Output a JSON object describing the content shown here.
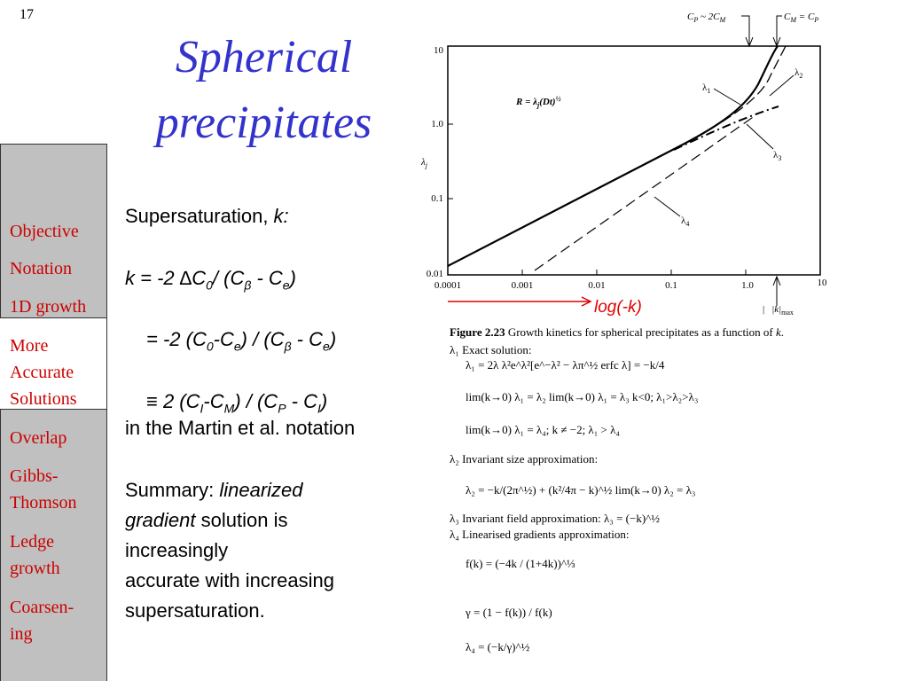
{
  "slide_number": "17",
  "title": [
    "Spherical",
    "precipitates"
  ],
  "sidebar": {
    "items": [
      [
        "Objective"
      ],
      [
        "Notation"
      ],
      [
        "1D growth"
      ],
      [
        "More",
        "Accurate",
        "Solutions"
      ],
      [
        "Overlap"
      ],
      [
        "Gibbs-",
        "Thomson"
      ],
      [
        "Ledge",
        "growth"
      ],
      [
        "Coarsen-",
        "ing"
      ]
    ]
  },
  "body": {
    "lines": [
      [
        "Supersaturation, ",
        "k:"
      ],
      [
        "k = -2 ∆C",
        "0",
        "/ (C",
        "β",
        " - C",
        "e",
        ")"
      ],
      [
        "= -2 (C",
        "0",
        "-C",
        "e",
        ") / (C",
        "β",
        " - C",
        "e",
        ")"
      ],
      [
        "≡ 2 (C",
        "I",
        "-C",
        "M",
        ") / (C",
        "P",
        " - C",
        "I",
        ")"
      ],
      [
        "in the Martin et al. notation"
      ]
    ],
    "summary": [
      "Summary: ",
      "linearized",
      "gradient",
      " solution is",
      "increasingly",
      "accurate with increasing",
      "supersaturation."
    ]
  },
  "figure": {
    "top_labels": [
      [
        "C",
        "P",
        " ~ 2C",
        "M"
      ],
      [
        "C",
        "M",
        " = C",
        "P"
      ]
    ],
    "y_label": [
      "λ",
      "j"
    ],
    "equation": [
      "R",
      " = λ",
      "j",
      "(Dt)",
      "½"
    ],
    "yticks": [
      "10",
      "1.0",
      "0.1",
      "0.01"
    ],
    "xticks": [
      "0.0001",
      "0.001",
      "0.01",
      "0.1",
      "1.0",
      "10"
    ],
    "curve_labels": [
      [
        "λ",
        "1"
      ],
      [
        "λ",
        "2"
      ],
      [
        "λ",
        "3"
      ],
      [
        "λ",
        "4"
      ]
    ],
    "kmax": [
      "|",
      "|k|",
      "max"
    ],
    "annotation": "log(-k)"
  },
  "caption": {
    "title": [
      "Figure 2.23",
      "   Growth kinetics for spherical precipitates as a function of ",
      "k",
      "."
    ],
    "lines": [
      "λ₁ Exact solution:",
      "λ₁ = 2λ   λ²e^λ²[e^−λ² − λπ^½ erfc λ] = −k/4",
      "lim(k→0) λ₁ = λ₂   lim(k→0) λ₁ = λ₃   k<0; λ₁>λ₂>λ₃",
      "lim(k→0) λ₁ = λ₄;   k ≠ −2; λ₁ > λ₄",
      "λ₂ Invariant size approximation:",
      "λ₂ = −k/(2π^½) + (k²/4π − k)^½    lim(k→0) λ₂ = λ₃",
      "λ₃ Invariant field approximation: λ₃ = (−k)^½",
      "λ₄ Linearised gradients approximation:",
      "f(k) = (−4k / (1+4k))^⅓",
      "γ = (1 − f(k)) / f(k)",
      "λ₄ = (−k/γ)^½"
    ]
  }
}
